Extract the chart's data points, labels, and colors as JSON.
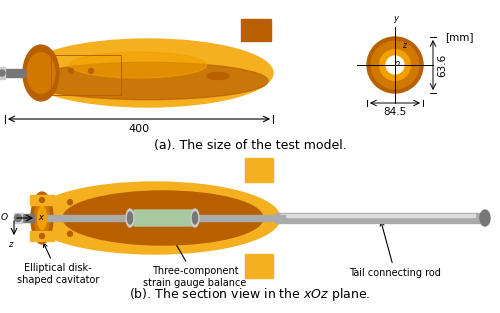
{
  "bg_color": "#ffffff",
  "orange_dark": "#b86000",
  "orange_mid": "#d07800",
  "orange_light": "#f0a000",
  "orange_bright": "#f5b020",
  "orange_body": "#e89010",
  "gray_rod": "#aaaaaa",
  "gray_dark": "#777777",
  "gray_light": "#cccccc",
  "green_gauge": "#a8c8a0",
  "title_a": "(a). The size of the test model.",
  "dim_400": "400",
  "dim_845": "84.5",
  "dim_636": "63.6",
  "dim_mm": "[mm]",
  "anno1": "Elliptical disk-\nshaped cavitator",
  "anno2": "Three-component\nstrain gauge balance",
  "anno3": "Tail connecting rod",
  "font_title": 9,
  "font_anno": 7,
  "font_dim": 7.5
}
